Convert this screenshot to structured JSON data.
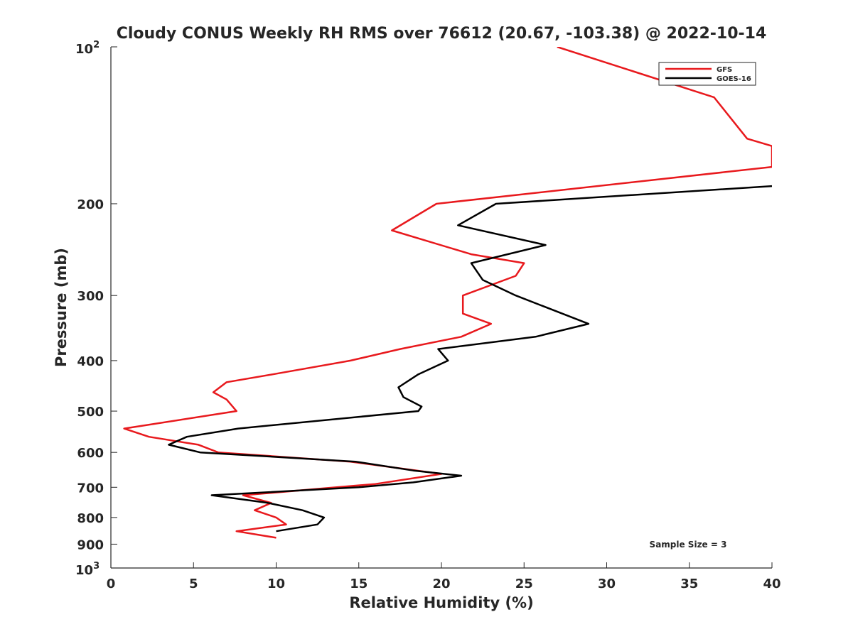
{
  "chart_data": {
    "type": "line",
    "title": "Cloudy CONUS Weekly RH RMS over 76612 (20.67, -103.38) @ 2022-10-14",
    "xlabel": "Relative Humidity (%)",
    "ylabel": "Pressure (mb)",
    "xlim": [
      0,
      40
    ],
    "ylim": [
      100,
      1000
    ],
    "yscale": "log",
    "y_reversed": true,
    "grid": false,
    "x_ticks": [
      0,
      5,
      10,
      15,
      20,
      25,
      30,
      35,
      40
    ],
    "x_tick_labels": [
      "0",
      "5",
      "10",
      "15",
      "20",
      "25",
      "30",
      "35",
      "40"
    ],
    "y_ticks": [
      200,
      300,
      400,
      500,
      600,
      700,
      800,
      900
    ],
    "y_tick_labels": [
      "200",
      "300",
      "400",
      "500",
      "600",
      "700",
      "800",
      "900"
    ],
    "y_tick_top": {
      "base": "10",
      "exp": "2"
    },
    "y_tick_bottom": {
      "base": "10",
      "exp": "3"
    },
    "legend_position": "top-right",
    "annotation": "Sample Size = 3",
    "series": [
      {
        "name": "GFS",
        "color": "#e8191d",
        "points": [
          [
            27,
            100
          ],
          [
            36.5,
            125
          ],
          [
            38.5,
            150
          ],
          [
            40,
            155
          ],
          [
            40,
            170
          ],
          [
            19.7,
            200
          ],
          [
            17,
            225
          ],
          [
            21.8,
            250
          ],
          [
            25,
            260
          ],
          [
            24.5,
            275
          ],
          [
            21.3,
            300
          ],
          [
            21.3,
            325
          ],
          [
            23,
            340
          ],
          [
            21.2,
            360
          ],
          [
            17.5,
            380
          ],
          [
            14.5,
            400
          ],
          [
            9.8,
            425
          ],
          [
            7,
            440
          ],
          [
            6.2,
            460
          ],
          [
            7,
            475
          ],
          [
            7.6,
            500
          ],
          [
            0.8,
            540
          ],
          [
            2.3,
            560
          ],
          [
            5.3,
            580
          ],
          [
            6.5,
            600
          ],
          [
            14.5,
            625
          ],
          [
            18.5,
            650
          ],
          [
            20,
            660
          ],
          [
            16,
            690
          ],
          [
            8,
            725
          ],
          [
            9.7,
            750
          ],
          [
            8.7,
            775
          ],
          [
            10,
            800
          ],
          [
            10.6,
            825
          ],
          [
            7.6,
            850
          ],
          [
            10,
            875
          ]
        ]
      },
      {
        "name": "GOES-16",
        "color": "#000000",
        "points": [
          [
            40,
            185
          ],
          [
            23.3,
            200
          ],
          [
            21,
            220
          ],
          [
            26.3,
            240
          ],
          [
            21.8,
            260
          ],
          [
            22.5,
            280
          ],
          [
            24.5,
            300
          ],
          [
            28.9,
            340
          ],
          [
            25.7,
            360
          ],
          [
            19.8,
            380
          ],
          [
            20.4,
            400
          ],
          [
            18.6,
            425
          ],
          [
            17.4,
            450
          ],
          [
            17.7,
            470
          ],
          [
            18.8,
            490
          ],
          [
            18.6,
            500
          ],
          [
            7.7,
            540
          ],
          [
            4.6,
            560
          ],
          [
            3.5,
            580
          ],
          [
            5.4,
            600
          ],
          [
            14.8,
            625
          ],
          [
            18.3,
            650
          ],
          [
            21.2,
            665
          ],
          [
            18.3,
            685
          ],
          [
            15,
            700
          ],
          [
            6.1,
            725
          ],
          [
            9.5,
            750
          ],
          [
            11.6,
            775
          ],
          [
            12.9,
            800
          ],
          [
            12.5,
            825
          ],
          [
            10,
            850
          ]
        ]
      }
    ]
  }
}
